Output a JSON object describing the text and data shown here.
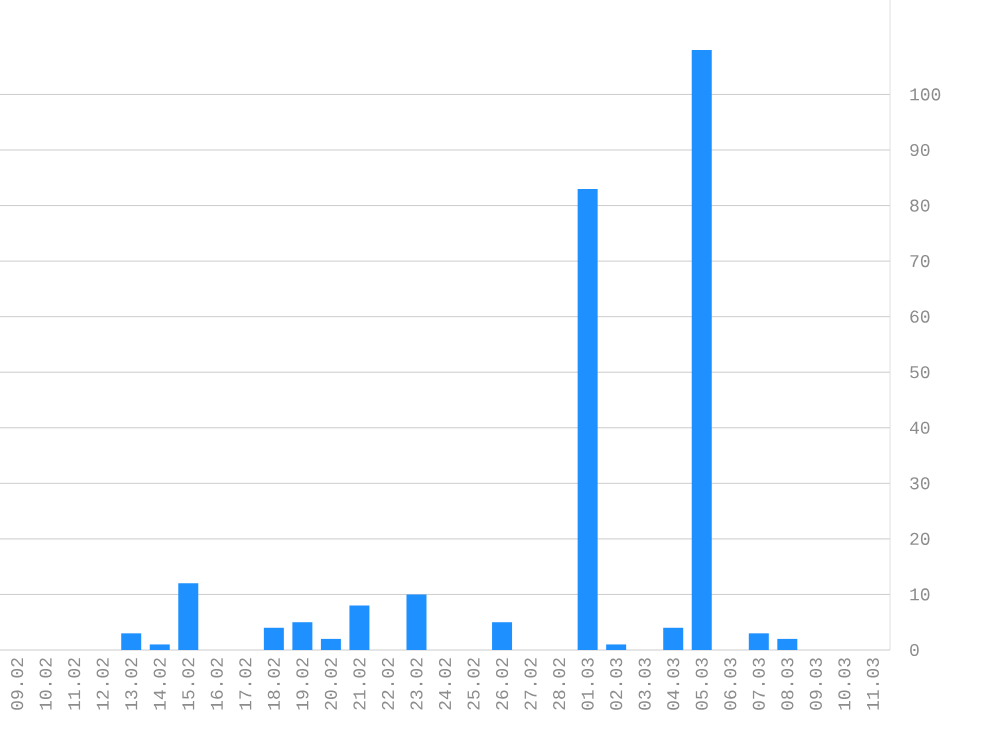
{
  "chart_data": {
    "type": "bar",
    "categories": [
      "09.02",
      "10.02",
      "11.02",
      "12.02",
      "13.02",
      "14.02",
      "15.02",
      "16.02",
      "17.02",
      "18.02",
      "19.02",
      "20.02",
      "21.02",
      "22.02",
      "23.02",
      "24.02",
      "25.02",
      "26.02",
      "27.02",
      "28.02",
      "01.03",
      "02.03",
      "03.03",
      "04.03",
      "05.03",
      "06.03",
      "07.03",
      "08.03",
      "09.03",
      "10.03",
      "11.03"
    ],
    "values": [
      0,
      0,
      0,
      0,
      3,
      1,
      12,
      0,
      0,
      4,
      5,
      2,
      8,
      0,
      10,
      0,
      0,
      5,
      0,
      0,
      83,
      1,
      0,
      4,
      108,
      0,
      3,
      2,
      0,
      0,
      0
    ],
    "color": "#1e90ff",
    "ylim": [
      0,
      117
    ],
    "yticks": [
      0,
      10,
      20,
      30,
      40,
      50,
      60,
      70,
      80,
      90,
      100
    ],
    "grid": "y"
  }
}
